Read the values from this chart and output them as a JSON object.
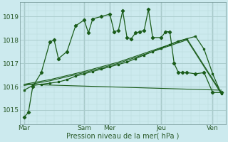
{
  "background_color": "#cceaee",
  "grid_color_major": "#aacccc",
  "grid_color_minor": "#bbdddd",
  "line_color": "#1a5c1a",
  "xlabel": "Pression niveau de la mer( hPa )",
  "yticks": [
    1015,
    1016,
    1017,
    1018,
    1019
  ],
  "ylim": [
    1014.4,
    1019.6
  ],
  "xlim": [
    0,
    24
  ],
  "day_labels": [
    "Mar",
    "Sam",
    "Mer",
    "Jeu",
    "Ven"
  ],
  "day_positions": [
    0.5,
    7.5,
    10.5,
    16.5,
    22.5
  ],
  "vline_positions": [
    0.5,
    7.5,
    10.5,
    16.5,
    22.5
  ],
  "series1_x": [
    0.5,
    1.0,
    1.5,
    2.5,
    3.5,
    4.0,
    4.5,
    5.5,
    6.5,
    7.5,
    8.0,
    8.5,
    9.5,
    10.5,
    11.0,
    11.5,
    12.0,
    12.5,
    13.0,
    13.5,
    14.0,
    14.5,
    15.0,
    15.5,
    16.5,
    17.0,
    17.5,
    18.0,
    18.5,
    19.0,
    19.5,
    20.5,
    21.5,
    22.5,
    23.5
  ],
  "series1_y": [
    1014.7,
    1014.9,
    1016.0,
    1016.6,
    1017.9,
    1018.0,
    1017.2,
    1017.5,
    1018.6,
    1018.85,
    1018.3,
    1018.9,
    1019.0,
    1019.1,
    1018.35,
    1018.4,
    1019.25,
    1018.1,
    1018.05,
    1018.3,
    1018.35,
    1018.4,
    1019.3,
    1018.1,
    1018.1,
    1018.35,
    1018.35,
    1017.0,
    1016.6,
    1016.6,
    1016.6,
    1016.55,
    1016.6,
    1015.75,
    1015.75
  ],
  "series2_x": [
    0.5,
    1.5,
    2.5,
    3.5,
    4.5,
    5.5,
    6.5,
    7.5,
    8.5,
    9.5,
    10.5,
    11.5,
    12.5,
    13.5,
    14.5,
    15.5,
    16.5,
    17.5,
    18.5,
    19.5,
    20.5,
    21.5,
    22.5,
    23.5
  ],
  "series2_y": [
    1015.85,
    1016.05,
    1016.1,
    1016.15,
    1016.2,
    1016.3,
    1016.45,
    1016.55,
    1016.65,
    1016.75,
    1016.85,
    1016.95,
    1017.05,
    1017.2,
    1017.35,
    1017.5,
    1017.65,
    1017.8,
    1017.95,
    1018.05,
    1018.15,
    1017.6,
    1016.55,
    1015.7
  ],
  "series3_x": [
    0.5,
    3.5,
    7.5,
    11.5,
    15.5,
    19.5,
    23.5
  ],
  "series3_y": [
    1016.05,
    1016.25,
    1016.6,
    1017.0,
    1017.5,
    1018.0,
    1015.7
  ],
  "series4_x": [
    0.5,
    3.5,
    7.5,
    11.5,
    15.5,
    19.5,
    23.5
  ],
  "series4_y": [
    1016.1,
    1016.3,
    1016.65,
    1017.05,
    1017.55,
    1018.05,
    1015.75
  ],
  "series5_x": [
    0.5,
    23.5
  ],
  "series5_y": [
    1016.1,
    1015.85
  ]
}
